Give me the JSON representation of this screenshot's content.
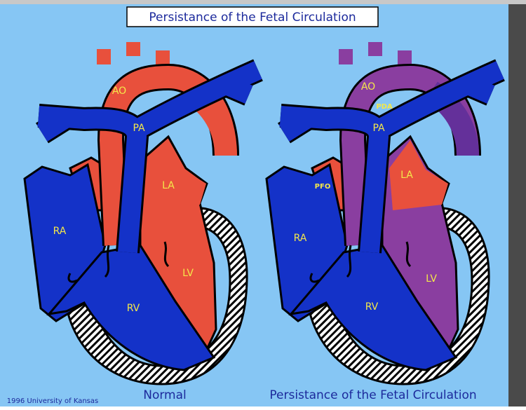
{
  "title": "Persistance of the Fetal Circulation",
  "hearts": [
    {
      "caption": "Normal",
      "labels": [
        "AO",
        "PA",
        "LA",
        "RA",
        "LV",
        "RV"
      ]
    },
    {
      "caption": "Persistance of the Fetal Circulation",
      "labels": [
        "AO",
        "PDA",
        "PA",
        "LA",
        "PFO",
        "RA",
        "LV",
        "RV"
      ]
    }
  ],
  "copyright": "1996 University of Kansas"
}
